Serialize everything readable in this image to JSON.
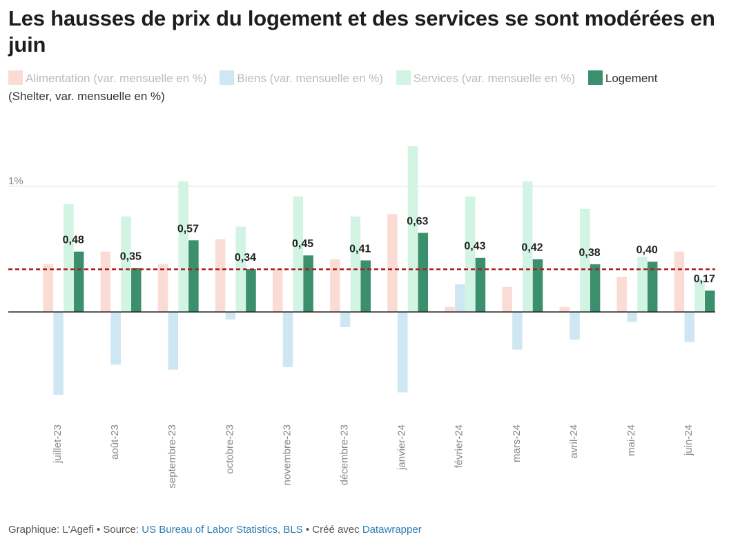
{
  "title": "Les hausses de prix du logement et des services se sont modérées en juin",
  "legend": {
    "items": [
      {
        "label": "Alimentation (var. mensuelle en %)",
        "color": "#fbdcd4",
        "active": false
      },
      {
        "label": "Biens (var. mensuelle en %)",
        "color": "#cfe6f3",
        "active": false
      },
      {
        "label": "Services (var. mensuelle en %)",
        "color": "#d2f4e4",
        "active": false
      },
      {
        "label": "Logement",
        "color": "#3b8f6d",
        "active": true
      }
    ],
    "note": "(Shelter, var. mensuelle en %)"
  },
  "footer": {
    "prefix": "Graphique: L'Agefi • Source: ",
    "source_link": "US Bureau of Labor Statistics, BLS",
    "middle": " • Créé avec ",
    "tool_link": "Datawrapper"
  },
  "chart_data": {
    "type": "bar",
    "categories": [
      "juillet-23",
      "août-23",
      "septembre-23",
      "octobre-23",
      "novembre-23",
      "décembre-23",
      "janvier-24",
      "février-24",
      "mars-24",
      "avril-24",
      "mai-24",
      "juin-24"
    ],
    "series": [
      {
        "name": "Alimentation (var. mensuelle en %)",
        "color": "#fbdcd4",
        "values": [
          0.38,
          0.48,
          0.38,
          0.58,
          0.34,
          0.42,
          0.78,
          0.04,
          0.2,
          0.04,
          0.28,
          0.48
        ]
      },
      {
        "name": "Biens (var. mensuelle en %)",
        "color": "#cfe6f3",
        "values": [
          -0.66,
          -0.42,
          -0.46,
          -0.06,
          -0.44,
          -0.12,
          -0.64,
          0.22,
          -0.3,
          -0.22,
          -0.08,
          -0.24
        ]
      },
      {
        "name": "Services (var. mensuelle en %)",
        "color": "#d2f4e4",
        "values": [
          0.86,
          0.76,
          1.04,
          0.68,
          0.92,
          0.76,
          1.32,
          0.92,
          1.04,
          0.82,
          0.44,
          0.26
        ]
      },
      {
        "name": "Logement",
        "color": "#3b8f6d",
        "values": [
          0.48,
          0.35,
          0.57,
          0.34,
          0.45,
          0.41,
          0.63,
          0.43,
          0.42,
          0.38,
          0.4,
          0.17
        ],
        "labels": [
          "0,48",
          "0,35",
          "0,57",
          "0,34",
          "0,45",
          "0,41",
          "0,63",
          "0,43",
          "0,42",
          "0,38",
          "0,40",
          "0,17"
        ]
      }
    ],
    "y_ticks": [
      {
        "value": 1,
        "label": "1%"
      }
    ],
    "reference_line": {
      "value": 0.34,
      "color": "#b01c1c",
      "style": "dashed"
    },
    "ylim": [
      -0.8,
      1.45
    ],
    "grid": true,
    "legend_position": "top"
  }
}
